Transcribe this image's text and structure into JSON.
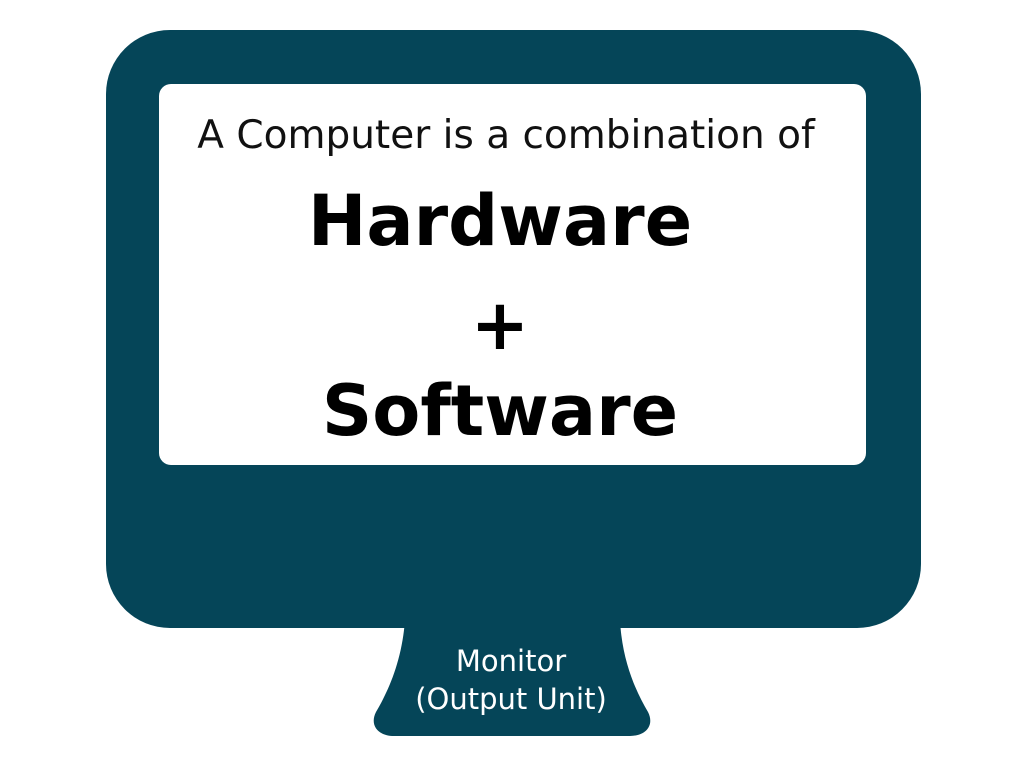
{
  "colors": {
    "monitor": "#054558",
    "screen": "#ffffff",
    "text_dark": "#000000",
    "text_light": "#ffffff"
  },
  "screen_text": {
    "intro": "A Computer is a combination of",
    "hardware": "Hardware",
    "plus": "+",
    "software": "Software"
  },
  "stand_label": {
    "line1": "Monitor",
    "line2": "(Output Unit)"
  }
}
